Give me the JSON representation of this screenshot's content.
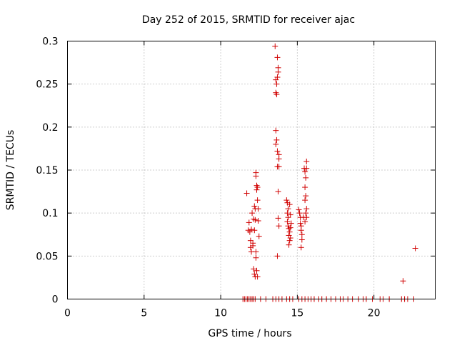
{
  "chart_data": {
    "type": "scatter",
    "title": "Day 252 of 2015, SRMTID for receiver ajac",
    "xlabel": "GPS time / hours",
    "ylabel": "SRMTID / TECUs",
    "xlim": [
      0,
      24
    ],
    "ylim": [
      0,
      0.3
    ],
    "x_ticks": [
      "0",
      "5",
      "10",
      "15",
      "20"
    ],
    "y_ticks": [
      "0",
      "0.05",
      "0.1",
      "0.15",
      "0.2",
      "0.25",
      "0.3"
    ],
    "grid": true,
    "marker": "plus",
    "color": "#d00000",
    "points": [
      [
        11.7,
        0.123
      ],
      [
        11.8,
        0.08
      ],
      [
        11.85,
        0.089
      ],
      [
        11.9,
        0.078
      ],
      [
        11.95,
        0.068
      ],
      [
        11.95,
        0.06
      ],
      [
        12.0,
        0.081
      ],
      [
        12.0,
        0.055
      ],
      [
        12.05,
        0.1
      ],
      [
        12.1,
        0.065
      ],
      [
        12.1,
        0.062
      ],
      [
        12.15,
        0.093
      ],
      [
        12.15,
        0.035
      ],
      [
        12.2,
        0.108
      ],
      [
        12.2,
        0.029
      ],
      [
        12.25,
        0.105
      ],
      [
        12.25,
        0.026
      ],
      [
        12.3,
        0.147
      ],
      [
        12.3,
        0.143
      ],
      [
        12.35,
        0.132
      ],
      [
        12.35,
        0.127
      ],
      [
        12.4,
        0.13
      ],
      [
        12.4,
        0.115
      ],
      [
        12.45,
        0.105
      ],
      [
        12.45,
        0.091
      ],
      [
        12.5,
        0.073
      ],
      [
        12.3,
        0.055
      ],
      [
        12.3,
        0.048
      ],
      [
        12.35,
        0.033
      ],
      [
        12.4,
        0.026
      ],
      [
        12.25,
        0.092
      ],
      [
        12.2,
        0.08
      ],
      [
        13.55,
        0.294
      ],
      [
        13.6,
        0.255
      ],
      [
        13.65,
        0.25
      ],
      [
        13.7,
        0.281
      ],
      [
        13.75,
        0.269
      ],
      [
        13.75,
        0.264
      ],
      [
        13.7,
        0.258
      ],
      [
        13.6,
        0.24
      ],
      [
        13.65,
        0.238
      ],
      [
        13.6,
        0.196
      ],
      [
        13.65,
        0.185
      ],
      [
        13.6,
        0.18
      ],
      [
        13.7,
        0.172
      ],
      [
        13.8,
        0.168
      ],
      [
        13.8,
        0.163
      ],
      [
        13.7,
        0.154
      ],
      [
        13.8,
        0.154
      ],
      [
        13.75,
        0.125
      ],
      [
        13.75,
        0.094
      ],
      [
        13.8,
        0.085
      ],
      [
        13.7,
        0.05
      ],
      [
        14.3,
        0.115
      ],
      [
        14.35,
        0.112
      ],
      [
        14.4,
        0.105
      ],
      [
        14.35,
        0.1
      ],
      [
        14.4,
        0.095
      ],
      [
        14.35,
        0.09
      ],
      [
        14.4,
        0.085
      ],
      [
        14.45,
        0.082
      ],
      [
        14.5,
        0.078
      ],
      [
        14.45,
        0.074
      ],
      [
        14.5,
        0.068
      ],
      [
        14.45,
        0.063
      ],
      [
        14.55,
        0.083
      ],
      [
        14.5,
        0.11
      ],
      [
        14.55,
        0.098
      ],
      [
        14.6,
        0.088
      ],
      [
        14.55,
        0.071
      ],
      [
        15.1,
        0.104
      ],
      [
        15.15,
        0.1
      ],
      [
        15.2,
        0.095
      ],
      [
        15.2,
        0.088
      ],
      [
        15.25,
        0.085
      ],
      [
        15.25,
        0.08
      ],
      [
        15.3,
        0.075
      ],
      [
        15.3,
        0.069
      ],
      [
        15.25,
        0.06
      ],
      [
        15.4,
        0.095
      ],
      [
        15.45,
        0.152
      ],
      [
        15.5,
        0.148
      ],
      [
        15.55,
        0.141
      ],
      [
        15.6,
        0.16
      ],
      [
        15.5,
        0.13
      ],
      [
        15.55,
        0.12
      ],
      [
        15.5,
        0.115
      ],
      [
        15.6,
        0.105
      ],
      [
        15.55,
        0.1
      ],
      [
        15.6,
        0.095
      ],
      [
        15.5,
        0.09
      ],
      [
        15.6,
        0.152
      ],
      [
        21.9,
        0.021
      ],
      [
        22.7,
        0.059
      ],
      [
        11.45,
        0
      ],
      [
        11.55,
        0
      ],
      [
        11.65,
        0
      ],
      [
        11.75,
        0
      ],
      [
        11.85,
        0
      ],
      [
        11.95,
        0
      ],
      [
        12.05,
        0
      ],
      [
        12.15,
        0
      ],
      [
        12.25,
        0
      ],
      [
        12.6,
        0
      ],
      [
        12.95,
        0
      ],
      [
        13.4,
        0
      ],
      [
        13.6,
        0
      ],
      [
        13.8,
        0
      ],
      [
        14.0,
        0
      ],
      [
        14.3,
        0
      ],
      [
        14.5,
        0
      ],
      [
        14.7,
        0
      ],
      [
        15.1,
        0
      ],
      [
        15.3,
        0
      ],
      [
        15.5,
        0
      ],
      [
        15.7,
        0
      ],
      [
        15.9,
        0
      ],
      [
        16.1,
        0
      ],
      [
        16.4,
        0
      ],
      [
        16.6,
        0
      ],
      [
        16.9,
        0
      ],
      [
        17.2,
        0
      ],
      [
        17.5,
        0
      ],
      [
        17.8,
        0
      ],
      [
        18.0,
        0
      ],
      [
        18.3,
        0
      ],
      [
        18.6,
        0
      ],
      [
        19.0,
        0
      ],
      [
        19.3,
        0
      ],
      [
        19.5,
        0
      ],
      [
        19.9,
        0
      ],
      [
        20.4,
        0
      ],
      [
        20.6,
        0
      ],
      [
        21.0,
        0
      ],
      [
        21.8,
        0
      ],
      [
        22.0,
        0
      ],
      [
        22.2,
        0
      ],
      [
        22.6,
        0
      ]
    ]
  }
}
